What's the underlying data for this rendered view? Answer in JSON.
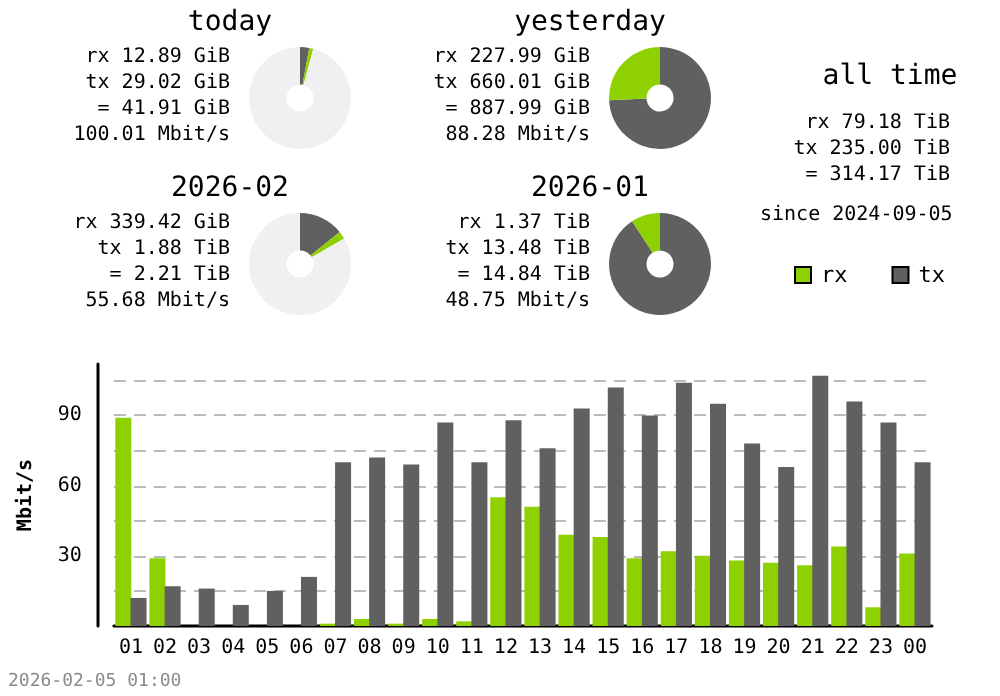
{
  "chart_data": [
    {
      "type": "donut",
      "title": "today",
      "categories": [
        null,
        null,
        null
      ],
      "values": [
        2.9,
        1.3,
        95.8
      ],
      "colors": [
        "#606060",
        "#8fd000",
        "#f0f0f0"
      ],
      "annotations": [
        "rx 12.89 GiB",
        "tx 29.02 GiB",
        "= 41.91 GiB",
        "100.01 Mbit/s"
      ]
    },
    {
      "type": "donut",
      "title": "yesterday",
      "categories": [
        null,
        null
      ],
      "values": [
        74.3,
        25.7
      ],
      "colors": [
        "#606060",
        "#8fd000"
      ],
      "annotations": [
        "rx 227.99 GiB",
        "tx 660.01 GiB",
        "= 887.99 GiB",
        "88.28 Mbit/s"
      ]
    },
    {
      "type": "other",
      "title": "all time",
      "annotations": [
        "rx 79.18 TiB",
        "tx 235.00 TiB",
        "= 314.17 TiB",
        "since 2024-09-05"
      ]
    },
    {
      "type": "donut",
      "title": "2026-02",
      "categories": [
        null,
        null,
        null
      ],
      "values": [
        14.2,
        2.5,
        83.3
      ],
      "colors": [
        "#606060",
        "#8fd000",
        "#f0f0f0"
      ],
      "annotations": [
        "rx 339.42 GiB",
        "tx 1.88 TiB",
        "= 2.21 TiB",
        "55.68 Mbit/s"
      ]
    },
    {
      "type": "donut",
      "title": "2026-01",
      "categories": [
        null,
        null
      ],
      "values": [
        90.8,
        9.2
      ],
      "colors": [
        "#606060",
        "#8fd000"
      ],
      "annotations": [
        "rx 1.37 TiB",
        "tx 13.48 TiB",
        "= 14.84 TiB",
        "48.75 Mbit/s"
      ]
    },
    {
      "type": "bar",
      "ylabel": "Mbit/s",
      "legend": "top right",
      "grid": "y",
      "categories": [
        "01",
        "02",
        "03",
        "04",
        "05",
        "06",
        "07",
        "08",
        "09",
        "10",
        "11",
        "12",
        "13",
        "14",
        "15",
        "16",
        "17",
        "18",
        "19",
        "20",
        "21",
        "22",
        "23",
        "00"
      ],
      "series": [
        {
          "name": "rx",
          "color": "#8fd000",
          "values": [
            89,
            29,
            0,
            0,
            0,
            0,
            1,
            3,
            1,
            3,
            2,
            55,
            51,
            39,
            38,
            29,
            32,
            30,
            28,
            27,
            26,
            34,
            8,
            31
          ]
        },
        {
          "name": "tx",
          "color": "#606060",
          "values": [
            12,
            17,
            16,
            9,
            15,
            21,
            70,
            72,
            69,
            87,
            70,
            88,
            76,
            93,
            102,
            90,
            104,
            95,
            78,
            68,
            107,
            96,
            87,
            70
          ]
        }
      ],
      "ylim": [
        0,
        112
      ],
      "yticks": [
        {
          "value": 15,
          "label": null
        },
        30,
        {
          "value": 45,
          "label": null
        },
        60,
        {
          "value": 75,
          "label": null
        },
        90,
        {
          "value": 105,
          "label": null
        }
      ],
      "annotations": [
        "2026-02-05 01:00"
      ]
    }
  ]
}
